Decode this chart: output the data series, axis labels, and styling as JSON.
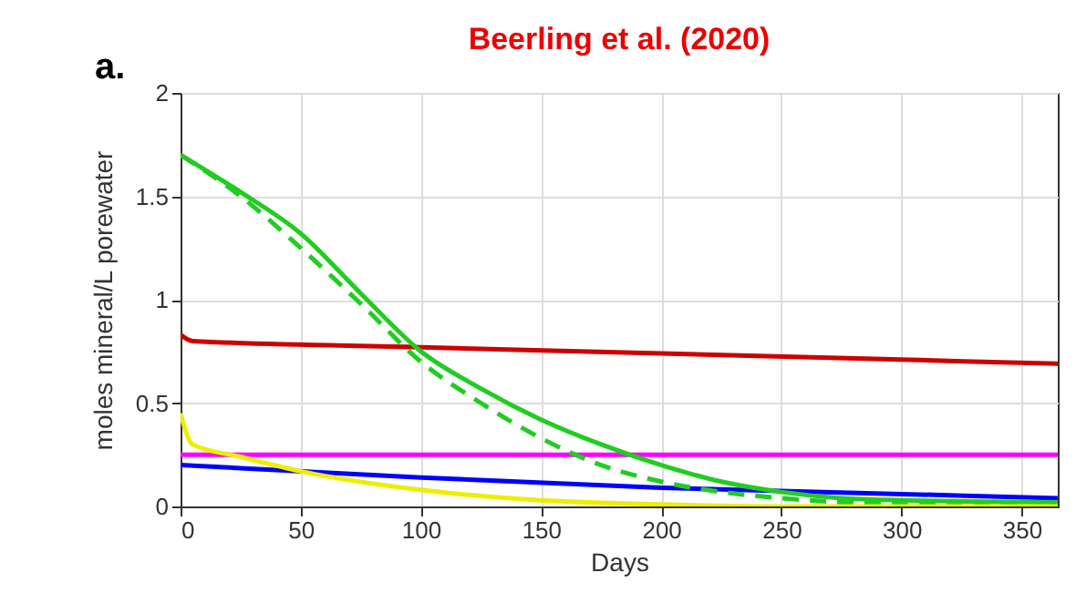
{
  "chart_data": {
    "type": "line",
    "title": "Beerling et al. (2020)",
    "xlabel": "Days",
    "ylabel": "moles mineral/L porewater",
    "annotations": [
      "a."
    ],
    "xlim": [
      0,
      365
    ],
    "xticks": [
      0,
      50,
      100,
      150,
      200,
      250,
      300,
      350
    ],
    "ylim": [
      0,
      2
    ],
    "yticks": [
      0,
      0.5,
      1,
      1.5,
      2
    ],
    "grid": true,
    "marker": "none",
    "series": [
      {
        "color": "#cc0000",
        "x": [
          0,
          5,
          100,
          200,
          300,
          365
        ],
        "values": [
          0.83,
          0.8,
          0.77,
          0.74,
          0.71,
          0.69
        ]
      },
      {
        "color": "#ff00ff",
        "x": [
          0,
          365
        ],
        "values": [
          0.25,
          0.25
        ]
      },
      {
        "color": "#0000ff",
        "x": [
          0,
          100,
          200,
          300,
          365
        ],
        "values": [
          0.2,
          0.14,
          0.09,
          0.06,
          0.04
        ]
      },
      {
        "color": "#22cc22",
        "line_style": "solid",
        "x": [
          0,
          25,
          50,
          75,
          100,
          125,
          150,
          175,
          200,
          225,
          250,
          275,
          300,
          365
        ],
        "values": [
          1.7,
          1.52,
          1.32,
          1.03,
          0.75,
          0.57,
          0.42,
          0.3,
          0.2,
          0.12,
          0.07,
          0.04,
          0.03,
          0.02
        ]
      },
      {
        "color": "#22cc22",
        "line_style": "dashed",
        "x": [
          0,
          25,
          50,
          75,
          100,
          125,
          150,
          175,
          200,
          225,
          250,
          275,
          300,
          365
        ],
        "values": [
          1.7,
          1.5,
          1.25,
          0.98,
          0.7,
          0.5,
          0.33,
          0.2,
          0.12,
          0.07,
          0.04,
          0.02,
          0.01,
          0
        ]
      },
      {
        "color": "#eeee00",
        "x": [
          0,
          5,
          25,
          50,
          100,
          150,
          200,
          250,
          365
        ],
        "values": [
          0.45,
          0.3,
          0.24,
          0.17,
          0.08,
          0.03,
          0.01,
          0,
          0
        ]
      }
    ]
  }
}
